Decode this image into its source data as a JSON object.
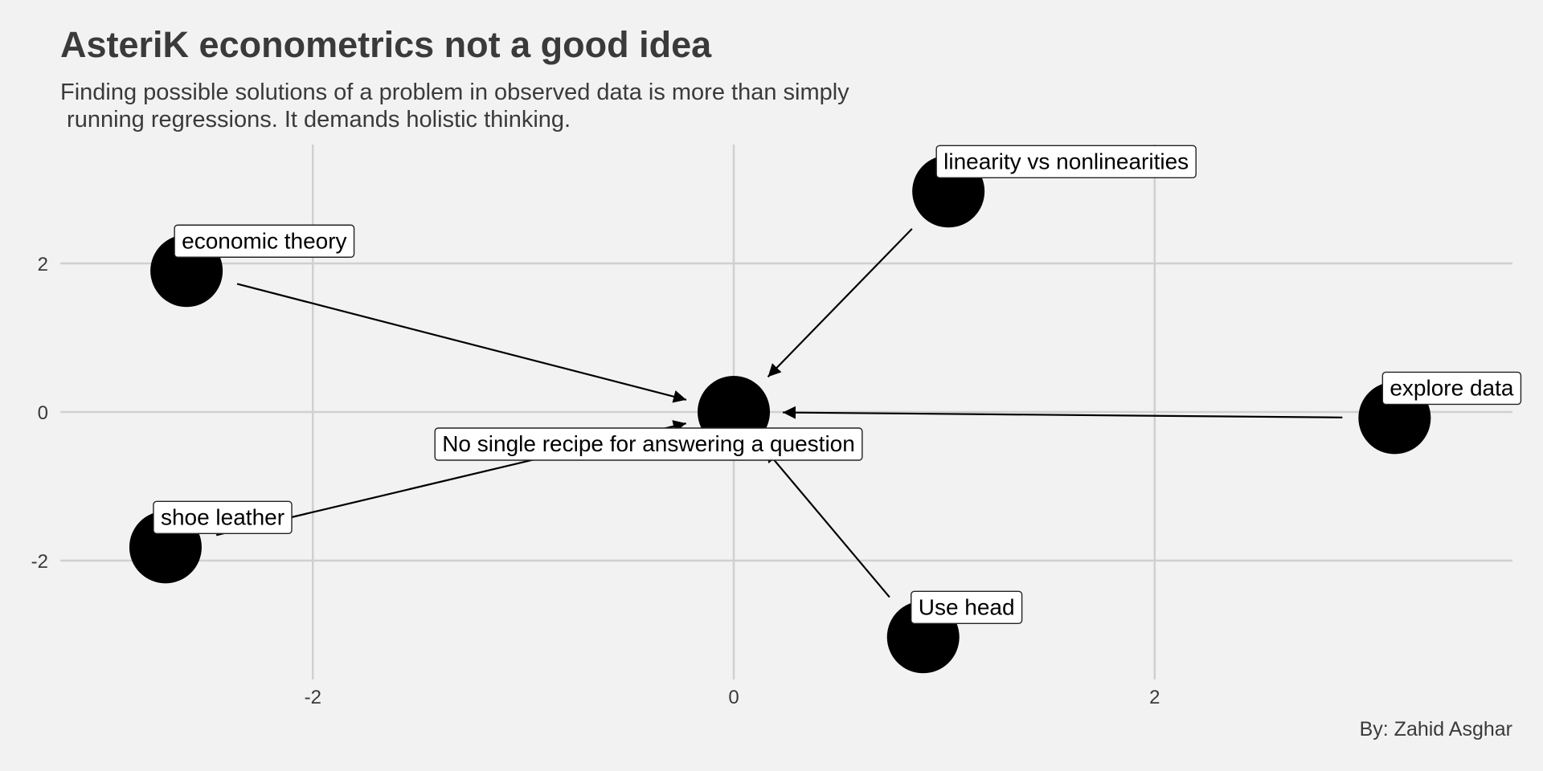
{
  "chart_data": {
    "type": "scatter",
    "title": "AsteriK econometrics not a good idea",
    "subtitle": "Finding possible solutions of a problem in observed data is more than simply\n running regressions. It demands holistic thinking.",
    "caption": "By: Zahid Asghar",
    "xlim": [
      -3.2,
      3.7
    ],
    "ylim": [
      -3.6,
      3.6
    ],
    "x_ticks": [
      -2,
      0,
      2
    ],
    "y_ticks": [
      -2,
      0,
      2
    ],
    "grid": true,
    "legend": "none",
    "center": {
      "label": "No single recipe for answering a question",
      "x": 0,
      "y": 0
    },
    "points": [
      {
        "label": "economic theory",
        "x": -2.6,
        "y": 1.9
      },
      {
        "label": "linearity vs nonlinearities",
        "x": 1.02,
        "y": 2.97
      },
      {
        "label": "explore data",
        "x": 3.14,
        "y": -0.08
      },
      {
        "label": "Use head",
        "x": 0.9,
        "y": -3.03
      },
      {
        "label": "shoe leather",
        "x": -2.7,
        "y": -1.82
      }
    ]
  },
  "colors": {
    "background": "#f2f2f2",
    "grid": "#d0d0d0",
    "point": "#000000",
    "text": "#3a3a3a"
  }
}
